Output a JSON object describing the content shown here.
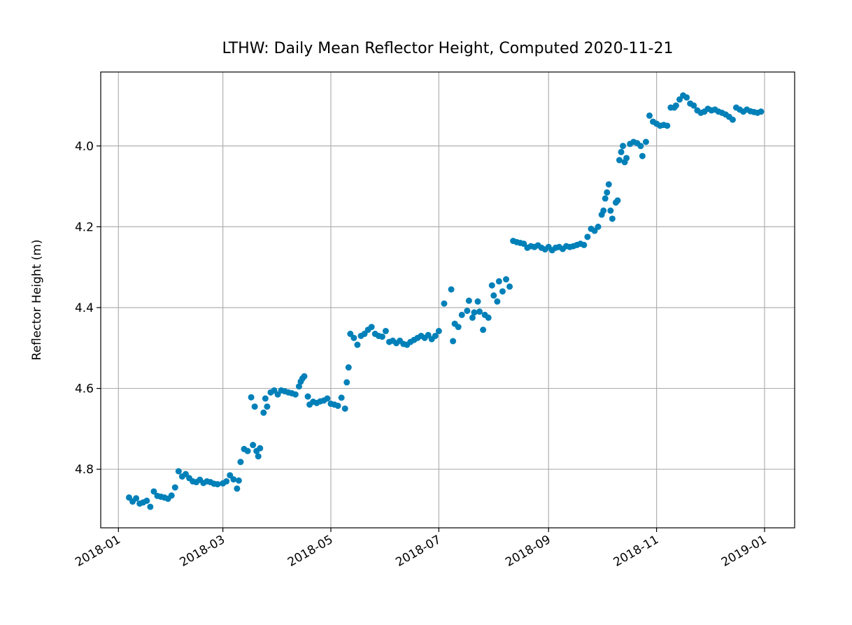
{
  "chart_data": {
    "type": "scatter",
    "title": "LTHW: Daily Mean Reflector Height, Computed 2020-11-21",
    "y_label": "Reflector Height (m)",
    "color": "#0080b8",
    "grid": true,
    "xlim": [
      "2017-12-22",
      "2019-01-18"
    ],
    "ylim": [
      4.945,
      3.817
    ],
    "xticks": [
      {
        "value": "2018-01-01",
        "label": "2018-01"
      },
      {
        "value": "2018-03-01",
        "label": "2018-03"
      },
      {
        "value": "2018-05-01",
        "label": "2018-05"
      },
      {
        "value": "2018-07-01",
        "label": "2018-07"
      },
      {
        "value": "2018-09-01",
        "label": "2018-09"
      },
      {
        "value": "2018-11-01",
        "label": "2018-11"
      },
      {
        "value": "2019-01-01",
        "label": "2019-01"
      }
    ],
    "yticks": [
      {
        "value": 4,
        "label": "4.0"
      },
      4.2,
      4.4,
      4.6,
      4.8
    ],
    "x": [
      "2018-01-07",
      "2018-01-09",
      "2018-01-11",
      "2018-01-13",
      "2018-01-15",
      "2018-01-17",
      "2018-01-19",
      "2018-01-21",
      "2018-01-23",
      "2018-01-25",
      "2018-01-27",
      "2018-01-29",
      "2018-01-31",
      "2018-02-02",
      "2018-02-04",
      "2018-02-06",
      "2018-02-08",
      "2018-02-10",
      "2018-02-12",
      "2018-02-14",
      "2018-02-16",
      "2018-02-18",
      "2018-02-20",
      "2018-02-22",
      "2018-02-24",
      "2018-02-26",
      "2018-03-01",
      "2018-03-03",
      "2018-03-05",
      "2018-03-07",
      "2018-03-09",
      "2018-03-10",
      "2018-03-11",
      "2018-03-13",
      "2018-03-15",
      "2018-03-17",
      "2018-03-18",
      "2018-03-19",
      "2018-03-20",
      "2018-03-21",
      "2018-03-22",
      "2018-03-24",
      "2018-03-25",
      "2018-03-26",
      "2018-03-28",
      "2018-03-30",
      "2018-04-01",
      "2018-04-03",
      "2018-04-05",
      "2018-04-07",
      "2018-04-09",
      "2018-04-11",
      "2018-04-13",
      "2018-04-14",
      "2018-04-15",
      "2018-04-16",
      "2018-04-18",
      "2018-04-19",
      "2018-04-21",
      "2018-04-23",
      "2018-04-25",
      "2018-04-27",
      "2018-04-29",
      "2018-05-01",
      "2018-05-03",
      "2018-05-05",
      "2018-05-07",
      "2018-05-09",
      "2018-05-10",
      "2018-05-11",
      "2018-05-12",
      "2018-05-14",
      "2018-05-16",
      "2018-05-18",
      "2018-05-20",
      "2018-05-22",
      "2018-05-24",
      "2018-05-26",
      "2018-05-28",
      "2018-05-30",
      "2018-06-01",
      "2018-06-03",
      "2018-06-05",
      "2018-06-07",
      "2018-06-09",
      "2018-06-11",
      "2018-06-13",
      "2018-06-15",
      "2018-06-17",
      "2018-06-19",
      "2018-06-21",
      "2018-06-23",
      "2018-06-25",
      "2018-06-27",
      "2018-06-29",
      "2018-07-01",
      "2018-07-04",
      "2018-07-08",
      "2018-07-09",
      "2018-07-10",
      "2018-07-12",
      "2018-07-14",
      "2018-07-17",
      "2018-07-18",
      "2018-07-20",
      "2018-07-21",
      "2018-07-23",
      "2018-07-24",
      "2018-07-26",
      "2018-07-27",
      "2018-07-29",
      "2018-07-31",
      "2018-08-01",
      "2018-08-03",
      "2018-08-04",
      "2018-08-06",
      "2018-08-08",
      "2018-08-10",
      "2018-08-12",
      "2018-08-14",
      "2018-08-16",
      "2018-08-18",
      "2018-08-20",
      "2018-08-22",
      "2018-08-24",
      "2018-08-26",
      "2018-08-28",
      "2018-08-30",
      "2018-09-01",
      "2018-09-03",
      "2018-09-05",
      "2018-09-07",
      "2018-09-09",
      "2018-09-11",
      "2018-09-13",
      "2018-09-15",
      "2018-09-17",
      "2018-09-19",
      "2018-09-21",
      "2018-09-23",
      "2018-09-25",
      "2018-09-27",
      "2018-09-29",
      "2018-10-01",
      "2018-10-02",
      "2018-10-03",
      "2018-10-04",
      "2018-10-05",
      "2018-10-06",
      "2018-10-07",
      "2018-10-09",
      "2018-10-10",
      "2018-10-11",
      "2018-10-12",
      "2018-10-13",
      "2018-10-14",
      "2018-10-15",
      "2018-10-17",
      "2018-10-19",
      "2018-10-21",
      "2018-10-23",
      "2018-10-24",
      "2018-10-26",
      "2018-10-28",
      "2018-10-30",
      "2018-11-01",
      "2018-11-03",
      "2018-11-05",
      "2018-11-07",
      "2018-11-09",
      "2018-11-11",
      "2018-11-12",
      "2018-11-14",
      "2018-11-16",
      "2018-11-18",
      "2018-11-20",
      "2018-11-22",
      "2018-11-24",
      "2018-11-26",
      "2018-11-28",
      "2018-11-30",
      "2018-12-02",
      "2018-12-04",
      "2018-12-06",
      "2018-12-08",
      "2018-12-10",
      "2018-12-12",
      "2018-12-14",
      "2018-12-16",
      "2018-12-18",
      "2018-12-20",
      "2018-12-22",
      "2018-12-24",
      "2018-12-26",
      "2018-12-28",
      "2018-12-30"
    ],
    "values": [
      4.87,
      4.88,
      4.872,
      4.885,
      4.882,
      4.878,
      4.893,
      4.855,
      4.866,
      4.868,
      4.87,
      4.873,
      4.865,
      4.845,
      4.805,
      4.818,
      4.812,
      4.822,
      4.83,
      4.832,
      4.826,
      4.834,
      4.83,
      4.832,
      4.836,
      4.837,
      4.835,
      4.83,
      4.815,
      4.825,
      4.848,
      4.828,
      4.782,
      4.75,
      4.755,
      4.622,
      4.74,
      4.645,
      4.755,
      4.768,
      4.748,
      4.66,
      4.625,
      4.645,
      4.61,
      4.605,
      4.615,
      4.605,
      4.607,
      4.61,
      4.612,
      4.615,
      4.595,
      4.583,
      4.575,
      4.57,
      4.62,
      4.64,
      4.633,
      4.636,
      4.632,
      4.63,
      4.625,
      4.638,
      4.64,
      4.643,
      4.623,
      4.65,
      4.585,
      4.548,
      4.465,
      4.475,
      4.492,
      4.47,
      4.465,
      4.455,
      4.448,
      4.465,
      4.47,
      4.472,
      4.458,
      4.485,
      4.482,
      4.488,
      4.482,
      4.49,
      4.492,
      4.485,
      4.48,
      4.475,
      4.47,
      4.475,
      4.468,
      4.478,
      4.47,
      4.458,
      4.39,
      4.355,
      4.483,
      4.44,
      4.448,
      4.418,
      4.408,
      4.383,
      4.425,
      4.412,
      4.385,
      4.41,
      4.455,
      4.418,
      4.425,
      4.345,
      4.37,
      4.385,
      4.335,
      4.36,
      4.33,
      4.348,
      4.235,
      4.238,
      4.24,
      4.242,
      4.252,
      4.248,
      4.25,
      4.246,
      4.252,
      4.256,
      4.25,
      4.258,
      4.252,
      4.25,
      4.255,
      4.248,
      4.25,
      4.248,
      4.245,
      4.242,
      4.245,
      4.225,
      4.205,
      4.21,
      4.2,
      4.17,
      4.16,
      4.13,
      4.115,
      4.095,
      4.16,
      4.18,
      4.14,
      4.135,
      4.035,
      4.015,
      4.0,
      4.04,
      4.03,
      3.995,
      3.99,
      3.993,
      4.0,
      4.025,
      3.99,
      3.925,
      3.94,
      3.945,
      3.95,
      3.948,
      3.95,
      3.905,
      3.905,
      3.9,
      3.885,
      3.875,
      3.88,
      3.895,
      3.9,
      3.912,
      3.918,
      3.915,
      3.908,
      3.912,
      3.91,
      3.915,
      3.918,
      3.922,
      3.928,
      3.935,
      3.905,
      3.91,
      3.915,
      3.91,
      3.914,
      3.916,
      3.918,
      3.915
    ]
  }
}
